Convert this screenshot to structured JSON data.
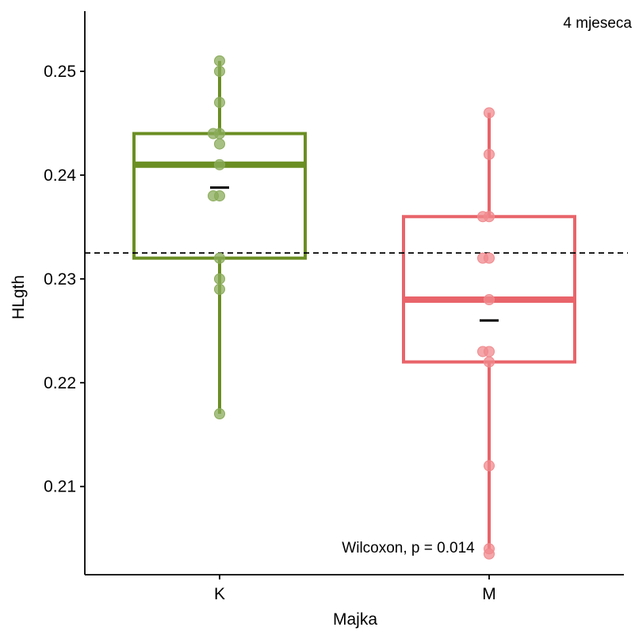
{
  "chart_data": {
    "type": "boxplot",
    "title": "",
    "subtitle": "4 mjeseca",
    "xlabel": "Majka",
    "ylabel": "HLgth",
    "ylim": [
      0.2015,
      0.2558
    ],
    "yticks": [
      "0.21",
      "0.22",
      "0.23",
      "0.24",
      "0.25"
    ],
    "categories": [
      "K",
      "M"
    ],
    "reference_line": {
      "value": 0.2325,
      "style": "dashed"
    },
    "annotation": "Wilcoxon, p = 0.014",
    "grid": false,
    "series": [
      {
        "category": "K",
        "color": "#6b8e23",
        "point_color": "#8aab5a",
        "min": 0.217,
        "q1": 0.232,
        "median": 0.241,
        "q3": 0.244,
        "max": 0.251,
        "mean": 0.2388,
        "points": [
          0.251,
          0.25,
          0.247,
          0.244,
          0.244,
          0.243,
          0.241,
          0.238,
          0.238,
          0.232,
          0.23,
          0.229,
          0.217
        ]
      },
      {
        "category": "M",
        "color": "#e8646a",
        "point_color": "#f0898d",
        "min": 0.204,
        "q1": 0.222,
        "median": 0.228,
        "q3": 0.236,
        "max": 0.246,
        "mean": 0.226,
        "points": [
          0.246,
          0.242,
          0.236,
          0.236,
          0.232,
          0.232,
          0.228,
          0.223,
          0.223,
          0.222,
          0.212,
          0.204,
          0.2035
        ]
      }
    ]
  }
}
